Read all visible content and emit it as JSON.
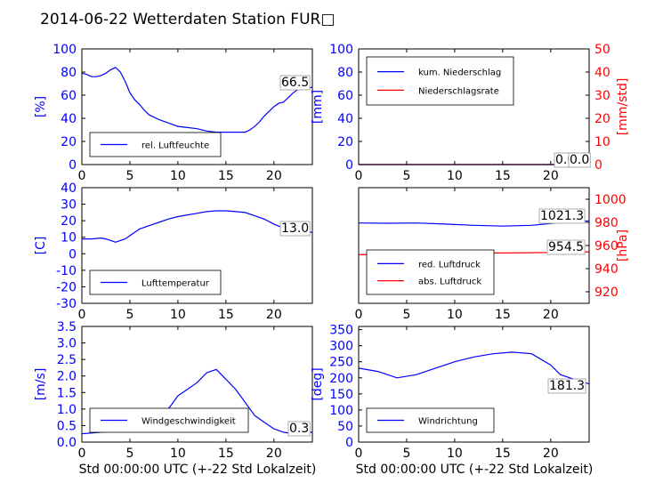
{
  "title": "2014-06-22 Wetterdaten Station FUR□",
  "xlabel": "Std 00:00:00 UTC (+-22 Std Lokalzeit)",
  "colors": {
    "primary": "#0000ff",
    "secondary": "#ff0000",
    "axis": "#000000"
  },
  "chart_data": [
    {
      "type": "line",
      "ylabel": "[%]",
      "xlim": [
        0,
        24
      ],
      "xticks": [
        0,
        5,
        10,
        15,
        20
      ],
      "ylim": [
        0,
        100
      ],
      "yticks": [
        0,
        20,
        40,
        60,
        80,
        100
      ],
      "series": [
        {
          "name": "rel. Luftfeuchte",
          "color": "#0000ff",
          "x": [
            0,
            0.5,
            1,
            1.5,
            2,
            2.5,
            3,
            3.5,
            4,
            4.5,
            5,
            5.5,
            6,
            6.5,
            7,
            8,
            9,
            10,
            11,
            12,
            13,
            14,
            15,
            16,
            17,
            17.5,
            18,
            18.5,
            19,
            19.5,
            20,
            20.5,
            21,
            21.5,
            22,
            22.5,
            23,
            23.5,
            24
          ],
          "y": [
            79,
            78,
            76,
            76,
            77,
            79,
            82,
            84,
            80,
            72,
            62,
            56,
            52,
            47,
            43,
            39,
            36,
            33,
            32,
            31,
            29,
            28,
            28,
            28,
            28,
            30,
            33,
            37,
            42,
            46,
            50,
            53,
            54,
            58,
            62,
            65,
            67,
            66,
            67
          ]
        }
      ],
      "annotation": "66.5",
      "legend_position": "lower-left"
    },
    {
      "type": "line",
      "ylabel": "[mm]",
      "ylabel_right": "[mm/std]",
      "xlim": [
        0,
        24
      ],
      "xticks": [
        0,
        5,
        10,
        15,
        20
      ],
      "ylim": [
        0,
        100
      ],
      "yticks": [
        0,
        20,
        40,
        60,
        80,
        100
      ],
      "ylim_right": [
        0,
        50
      ],
      "yticks_right": [
        0,
        10,
        20,
        30,
        40,
        50
      ],
      "series": [
        {
          "name": "kum. Niederschlag",
          "color": "#0000ff",
          "x": [
            0,
            24
          ],
          "y": [
            0,
            0
          ]
        },
        {
          "name": "Niederschlagsrate",
          "color": "#ff0000",
          "axis": "right",
          "x": [
            0,
            24
          ],
          "y": [
            0,
            0
          ]
        }
      ],
      "annotations": [
        "0.0",
        "0.0"
      ],
      "legend_position": "upper-left"
    },
    {
      "type": "line",
      "ylabel": "[C]",
      "xlim": [
        0,
        24
      ],
      "xticks": [
        0,
        5,
        10,
        15,
        20
      ],
      "ylim": [
        -30,
        40
      ],
      "yticks": [
        -30,
        -20,
        -10,
        0,
        10,
        20,
        30,
        40
      ],
      "series": [
        {
          "name": "Lufttemperatur",
          "color": "#0000ff",
          "x": [
            0,
            1,
            2,
            2.5,
            3,
            3.5,
            4,
            4.5,
            5,
            5.5,
            6,
            7,
            8,
            9,
            10,
            11,
            12,
            13,
            14,
            15,
            16,
            17,
            18,
            19,
            20,
            21,
            22,
            23,
            24
          ],
          "y": [
            9,
            9,
            9.5,
            9,
            8,
            7,
            8,
            9,
            11,
            13,
            15,
            17,
            19,
            21,
            22.5,
            23.5,
            24.5,
            25.5,
            26,
            26,
            25.5,
            25,
            23,
            21,
            18,
            15.5,
            14,
            13,
            13
          ]
        }
      ],
      "annotation": "13.0",
      "legend_position": "lower-left"
    },
    {
      "type": "line",
      "ylabel_right": "[hPa]",
      "xlim": [
        0,
        24
      ],
      "xticks": [
        0,
        5,
        10,
        15,
        20
      ],
      "ylim": [
        950,
        1050
      ],
      "yticks": [
        960,
        980,
        1000,
        1020,
        1040
      ],
      "ylim_right": [
        910,
        1010
      ],
      "yticks_right": [
        920,
        940,
        960,
        980,
        1000
      ],
      "series": [
        {
          "name": "red. Luftdruck",
          "color": "#0000ff",
          "x": [
            0,
            3,
            6,
            9,
            12,
            15,
            18,
            20,
            22,
            24
          ],
          "y": [
            1019.5,
            1019.2,
            1019.5,
            1018.5,
            1017.5,
            1016.8,
            1017.5,
            1019,
            1020.5,
            1021.3
          ]
        },
        {
          "name": "abs. Luftdruck",
          "color": "#ff0000",
          "axis": "right",
          "x": [
            0,
            3,
            6,
            9,
            12,
            15,
            18,
            20,
            22,
            24
          ],
          "y": [
            952,
            952.5,
            952.8,
            953,
            953.3,
            953.5,
            953.8,
            954,
            954.3,
            954.5
          ]
        }
      ],
      "annotations": [
        "1021.3",
        "954.5"
      ],
      "legend_position": "lower-left"
    },
    {
      "type": "line",
      "ylabel": "[m/s]",
      "xlim": [
        0,
        24
      ],
      "xticks": [
        0,
        5,
        10,
        15,
        20
      ],
      "ylim": [
        0,
        3.5
      ],
      "yticks": [
        0.0,
        0.5,
        1.0,
        1.5,
        2.0,
        2.5,
        3.0,
        3.5
      ],
      "series": [
        {
          "name": "Windgeschwindigkeit",
          "color": "#0000ff",
          "x": [
            0,
            2,
            4,
            6,
            8,
            9,
            10,
            11,
            12,
            13,
            14,
            15,
            16,
            17,
            18,
            19,
            20,
            21,
            22,
            23,
            24
          ],
          "y": [
            0.25,
            0.3,
            0.35,
            0.5,
            0.8,
            1.0,
            1.4,
            1.6,
            1.8,
            2.1,
            2.2,
            1.9,
            1.6,
            1.2,
            0.8,
            0.6,
            0.4,
            0.3,
            0.25,
            0.3,
            0.3
          ]
        }
      ],
      "annotation": "0.3",
      "legend_position": "lower-left"
    },
    {
      "type": "line",
      "ylabel": "[deg]",
      "xlim": [
        0,
        24
      ],
      "xticks": [
        0,
        5,
        10,
        15,
        20
      ],
      "ylim": [
        0,
        360
      ],
      "yticks": [
        0,
        50,
        100,
        150,
        200,
        250,
        300,
        350
      ],
      "series": [
        {
          "name": "Windrichtung",
          "color": "#0000ff",
          "x": [
            0,
            2,
            4,
            6,
            8,
            10,
            12,
            14,
            16,
            18,
            20,
            21,
            22,
            23,
            24
          ],
          "y": [
            230,
            220,
            200,
            210,
            230,
            250,
            265,
            275,
            280,
            275,
            240,
            210,
            200,
            190,
            181
          ]
        }
      ],
      "annotation": "181.3",
      "legend_position": "lower-left"
    }
  ]
}
